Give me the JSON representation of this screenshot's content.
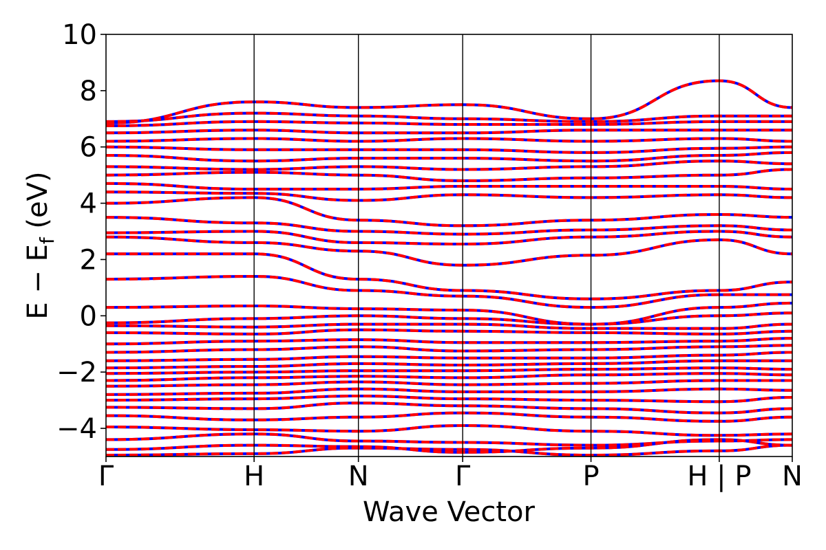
{
  "chart_data": {
    "type": "line",
    "title": "",
    "xlabel": "Wave Vector",
    "ylabel": {
      "main": "E − E",
      "subscript": "f",
      "unit": " (eV)"
    },
    "ylim": [
      -5,
      10
    ],
    "yticks": [
      -4,
      -2,
      0,
      2,
      4,
      6,
      8,
      10
    ],
    "ytick_labels": [
      "−4",
      "−2",
      "0",
      "2",
      "4",
      "6",
      "8",
      "10"
    ],
    "xlim": [
      0,
      6.58
    ],
    "kpoints": [
      {
        "x": 0.0,
        "label": "Γ"
      },
      {
        "x": 1.42,
        "label": "H"
      },
      {
        "x": 2.42,
        "label": "N"
      },
      {
        "x": 3.42,
        "label": "Γ"
      },
      {
        "x": 4.65,
        "label": "P"
      },
      {
        "x": 5.88,
        "label": "H | P"
      },
      {
        "x": 6.58,
        "label": "N"
      }
    ],
    "legend": "none",
    "grid": false,
    "colors": {
      "spin_up": "#0000ff",
      "spin_down": "#ff0000"
    },
    "series": [
      {
        "values": [
          -4.95,
          -4.9,
          -4.7,
          -4.75,
          -4.95,
          -4.8,
          -4.6,
          -4.8
        ]
      },
      {
        "values": [
          -4.75,
          -4.6,
          -4.65,
          -4.85,
          -4.7,
          -4.4,
          -4.6,
          -4.7
        ]
      },
      {
        "values": [
          -4.4,
          -4.2,
          -4.45,
          -4.5,
          -4.6,
          -4.45,
          -4.4,
          -4.5
        ]
      },
      {
        "values": [
          -3.95,
          -4.05,
          -4.1,
          -3.9,
          -4.1,
          -4.25,
          -4.2,
          -4.1
        ]
      },
      {
        "values": [
          -3.55,
          -3.7,
          -3.6,
          -3.45,
          -3.6,
          -3.75,
          -3.6,
          -3.7
        ]
      },
      {
        "values": [
          -3.25,
          -3.3,
          -3.1,
          -3.2,
          -3.3,
          -3.45,
          -3.3,
          -3.3
        ]
      },
      {
        "values": [
          -3.0,
          -2.95,
          -2.85,
          -2.95,
          -3.0,
          -3.05,
          -2.9,
          -3.0
        ]
      },
      {
        "values": [
          -2.8,
          -2.75,
          -2.6,
          -2.7,
          -2.7,
          -2.6,
          -2.65,
          -2.7
        ]
      },
      {
        "values": [
          -2.5,
          -2.45,
          -2.35,
          -2.45,
          -2.4,
          -2.3,
          -2.3,
          -2.4
        ]
      },
      {
        "values": [
          -2.3,
          -2.2,
          -2.15,
          -2.2,
          -2.1,
          -2.05,
          -2.1,
          -2.15
        ]
      },
      {
        "values": [
          -2.05,
          -2.0,
          -1.95,
          -1.95,
          -1.9,
          -1.85,
          -1.9,
          -1.95
        ]
      },
      {
        "values": [
          -1.85,
          -1.8,
          -1.7,
          -1.75,
          -1.7,
          -1.6,
          -1.6,
          -1.7
        ]
      },
      {
        "values": [
          -1.6,
          -1.55,
          -1.45,
          -1.5,
          -1.5,
          -1.4,
          -1.3,
          -1.4
        ]
      },
      {
        "values": [
          -1.3,
          -1.2,
          -1.1,
          -1.25,
          -1.2,
          -1.1,
          -1.05,
          -1.1
        ]
      },
      {
        "values": [
          -1.0,
          -0.9,
          -0.85,
          -0.95,
          -0.95,
          -0.9,
          -0.8,
          -0.85
        ]
      },
      {
        "values": [
          -0.6,
          -0.65,
          -0.5,
          -0.55,
          -0.6,
          -0.65,
          -0.55,
          -0.6
        ]
      },
      {
        "values": [
          -0.35,
          -0.4,
          -0.3,
          -0.3,
          -0.45,
          -0.45,
          -0.3,
          -0.35
        ]
      },
      {
        "values": [
          -0.25,
          -0.1,
          0.0,
          -0.1,
          -0.3,
          0.0,
          0.1,
          0.05
        ]
      },
      {
        "values": [
          0.3,
          0.35,
          0.25,
          0.2,
          -0.3,
          0.3,
          0.45,
          0.6
        ]
      },
      {
        "values": [
          1.3,
          1.4,
          0.9,
          0.7,
          0.3,
          0.75,
          0.75,
          0.8
        ]
      },
      {
        "values": [
          2.2,
          2.2,
          1.3,
          0.9,
          0.6,
          0.9,
          1.2,
          1.3
        ]
      },
      {
        "values": [
          2.8,
          2.6,
          2.3,
          1.8,
          2.15,
          2.7,
          2.2,
          2.5
        ]
      },
      {
        "values": [
          2.95,
          3.0,
          2.6,
          2.55,
          2.8,
          3.0,
          2.8,
          2.8
        ]
      },
      {
        "values": [
          3.5,
          3.3,
          3.0,
          2.9,
          3.05,
          3.2,
          3.05,
          3.0
        ]
      },
      {
        "values": [
          4.0,
          4.2,
          3.4,
          3.2,
          3.4,
          3.6,
          3.5,
          3.6
        ]
      },
      {
        "values": [
          4.4,
          4.35,
          4.1,
          4.3,
          4.2,
          4.3,
          4.2,
          4.3
        ]
      },
      {
        "values": [
          4.7,
          4.5,
          4.5,
          4.6,
          4.6,
          4.6,
          4.5,
          4.6
        ]
      },
      {
        "values": [
          5.0,
          5.1,
          5.0,
          4.8,
          4.9,
          5.0,
          5.2,
          5.0
        ]
      },
      {
        "values": [
          5.3,
          5.2,
          5.3,
          5.2,
          5.3,
          5.5,
          5.4,
          5.3
        ]
      },
      {
        "values": [
          5.7,
          5.5,
          5.6,
          5.6,
          5.5,
          5.7,
          5.8,
          5.6
        ]
      },
      {
        "values": [
          6.0,
          5.9,
          5.9,
          5.9,
          5.8,
          5.95,
          6.0,
          5.9
        ]
      },
      {
        "values": [
          6.2,
          6.3,
          6.2,
          6.3,
          6.2,
          6.3,
          6.2,
          6.2
        ]
      },
      {
        "values": [
          6.5,
          6.6,
          6.5,
          6.5,
          6.6,
          6.6,
          6.6,
          6.6
        ]
      },
      {
        "values": [
          6.75,
          6.9,
          6.85,
          6.8,
          6.8,
          6.9,
          6.9,
          6.85
        ]
      },
      {
        "values": [
          6.9,
          7.2,
          7.1,
          7.0,
          6.9,
          7.1,
          7.1,
          7.1
        ]
      },
      {
        "values": [
          6.85,
          7.6,
          7.4,
          7.5,
          7.0,
          8.35,
          7.4,
          7.45
        ]
      }
    ]
  }
}
